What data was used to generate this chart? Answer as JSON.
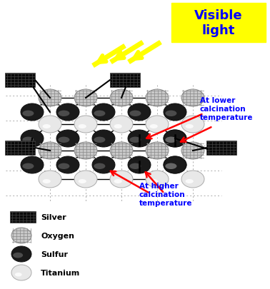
{
  "title": "Visible\nlight",
  "title_color": "#0000FF",
  "title_bg": "#FFFF00",
  "lower_text": "At lower\ncalcination\ntemperature",
  "higher_text": "At higher\ncalcination\ntemperature",
  "annotation_color": "#0000FF",
  "arrow_color": "red",
  "grid_color": "#AAAAAA",
  "bg_color": "#FFFFFF",
  "silver_color": "#111111",
  "light_arrow_color": "#FFFF00",
  "fig_w": 3.78,
  "fig_h": 4.06,
  "dpi": 100
}
